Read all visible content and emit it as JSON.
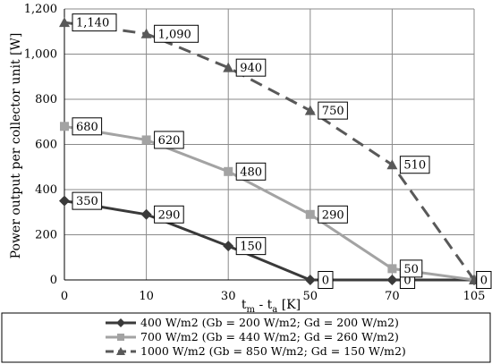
{
  "chart_data": {
    "type": "line",
    "categories": [
      "0",
      "10",
      "30",
      "50",
      "70",
      "105"
    ],
    "xlabel": {
      "main": "t",
      "sub1": "m",
      "mid": " - t",
      "sub2": "a",
      "unit": " [K]"
    },
    "ylabel": "Power output per collector unit [W]",
    "ylim": [
      0,
      1200
    ],
    "yticks": [
      "0",
      "200",
      "400",
      "600",
      "800",
      "1,000",
      "1,200"
    ],
    "grid": true,
    "legend_position": "bottom",
    "series": [
      {
        "name": "400 W/m2 (Gb = 200 W/m2; Gd = 200 W/m2)",
        "values": [
          350,
          290,
          150,
          0,
          0,
          0
        ],
        "labels": [
          "350",
          "290",
          "150",
          "0",
          "0",
          "0"
        ],
        "color": "#3a3a3a",
        "marker": "diamond",
        "dash": "solid"
      },
      {
        "name": "700 W/m2 (Gb = 440 W/m2; Gd = 260 W/m2)",
        "values": [
          680,
          620,
          480,
          290,
          50,
          0
        ],
        "labels": [
          "680",
          "620",
          "480",
          "290",
          "50",
          "0"
        ],
        "color": "#a3a3a3",
        "marker": "square",
        "dash": "solid"
      },
      {
        "name": "1000 W/m2 (Gb = 850 W/m2; Gd = 150 W/m2)",
        "values": [
          1140,
          1090,
          940,
          750,
          510,
          0
        ],
        "labels": [
          "1,140",
          "1,090",
          "940",
          "750",
          "510",
          "0"
        ],
        "color": "#595959",
        "marker": "triangle",
        "dash": "dashed"
      }
    ]
  }
}
